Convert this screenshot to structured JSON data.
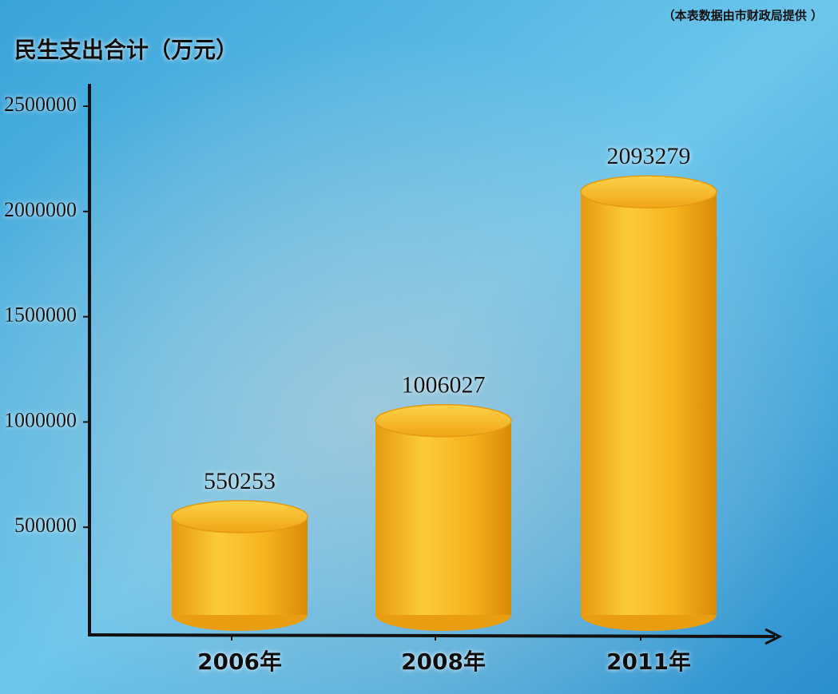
{
  "chart_data": {
    "type": "bar",
    "title": "民生支出合计（万元）",
    "source": "（本表数据由市财政局提供 ）",
    "categories": [
      "2006年",
      "2008年",
      "2011年"
    ],
    "values": [
      550253,
      1006027,
      2093279
    ],
    "color": "#f6b21c",
    "ylim": [
      0,
      2500000
    ],
    "yticks": [
      500000,
      1000000,
      1500000,
      2000000,
      2500000
    ]
  }
}
